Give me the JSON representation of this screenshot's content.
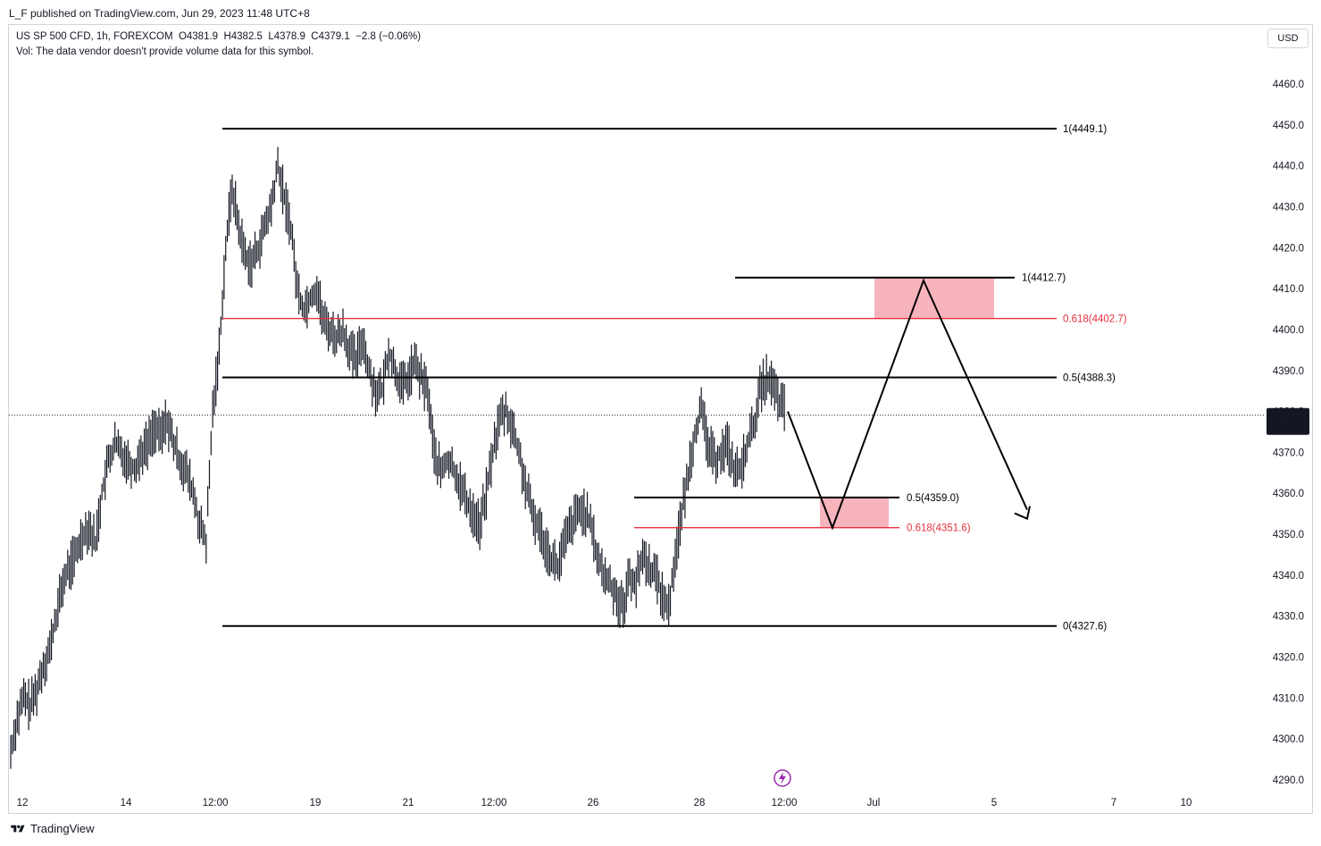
{
  "header": {
    "published": "L_F published on TradingView.com, Jun 29, 2023 11:48 UTC+8",
    "symbol_line": "US SP 500 CFD, 1h, FOREXCOM",
    "ohlc": {
      "open": "O4381.9",
      "high": "H4382.5",
      "low": "L4378.9",
      "close": "C4379.1",
      "change": "−2.8 (−0.06%)"
    },
    "volume_note": "Vol: The data vendor doesn't provide volume data for this symbol.",
    "currency": "USD"
  },
  "footer": {
    "brand": "TradingView"
  },
  "colors": {
    "candle": "#131722",
    "fib_black": "#000000",
    "fib_red": "#e5323e",
    "zone_fill": "#f7b4bd",
    "price_tag_bg": "#131722",
    "lightning": "#9c27b0"
  },
  "chart_data": {
    "type": "bar",
    "ylim": [
      4290,
      4460
    ],
    "y_ticks": [
      4290,
      4300,
      4310,
      4320,
      4330,
      4340,
      4350,
      4360,
      4370,
      4380,
      4390,
      4400,
      4410,
      4420,
      4430,
      4440,
      4450,
      4460
    ],
    "x_ticks": [
      "12",
      "14",
      "12:00",
      "19",
      "21",
      "12:00",
      "26",
      "28",
      "12:00",
      "Jul",
      "5",
      "7",
      "10"
    ],
    "current_price": {
      "value": 4379.1,
      "label": "4379.1",
      "countdown": "11:08"
    },
    "fib_levels": [
      {
        "label": "1(4449.1)",
        "value": 4449.1,
        "color": "black"
      },
      {
        "label": "0.5(4388.3)",
        "value": 4388.3,
        "color": "black"
      },
      {
        "label": "0(4327.6)",
        "value": 4327.6,
        "color": "black"
      },
      {
        "label": "1(4412.7)",
        "value": 4412.7,
        "color": "black"
      },
      {
        "label": "0.618(4402.7)",
        "value": 4402.7,
        "color": "red"
      },
      {
        "label": "0.5(4359.0)",
        "value": 4359.0,
        "color": "black"
      },
      {
        "label": "0.618(4351.6)",
        "value": 4351.6,
        "color": "red"
      }
    ],
    "zones": [
      {
        "from": 4359.0,
        "to": 4351.6
      },
      {
        "from": 4412.7,
        "to": 4402.7
      }
    ],
    "projection_path": [
      4380,
      4351.6,
      4412.0,
      4356.0
    ],
    "price_path": [
      4297,
      4305,
      4310,
      4308,
      4312,
      4318,
      4322,
      4330,
      4338,
      4342,
      4345,
      4350,
      4352,
      4348,
      4360,
      4368,
      4372,
      4370,
      4368,
      4366,
      4370,
      4372,
      4376,
      4374,
      4378,
      4372,
      4368,
      4365,
      4360,
      4352,
      4348,
      4380,
      4395,
      4420,
      4435,
      4425,
      4418,
      4416,
      4420,
      4425,
      4430,
      4440,
      4432,
      4425,
      4410,
      4405,
      4408,
      4410,
      4402,
      4400,
      4398,
      4400,
      4395,
      4392,
      4398,
      4390,
      4385,
      4385,
      4395,
      4390,
      4386,
      4388,
      4392,
      4388,
      4385,
      4370,
      4365,
      4368,
      4366,
      4362,
      4358,
      4355,
      4352,
      4360,
      4370,
      4378,
      4380,
      4376,
      4370,
      4362,
      4355,
      4352,
      4348,
      4344,
      4342,
      4348,
      4352,
      4355,
      4356,
      4352,
      4345,
      4340,
      4338,
      4335,
      4332,
      4340,
      4338,
      4345,
      4342,
      4340,
      4335,
      4332,
      4345,
      4355,
      4365,
      4375,
      4380,
      4372,
      4368,
      4370,
      4372,
      4366,
      4365,
      4372,
      4376,
      4385,
      4388,
      4386,
      4382,
      4380
    ]
  }
}
